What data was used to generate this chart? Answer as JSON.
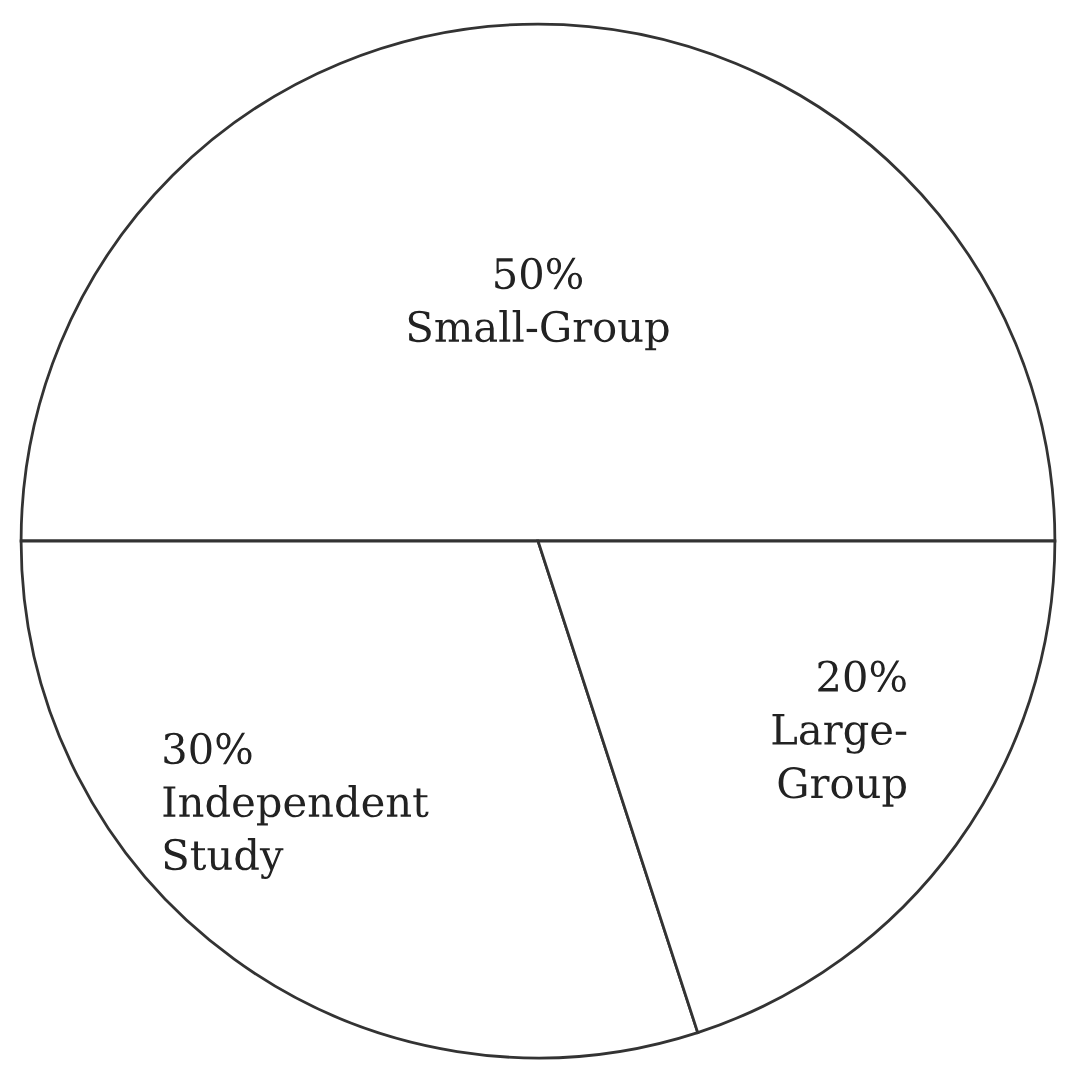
{
  "chart_data": {
    "type": "pie",
    "categories": [
      "Small-Group",
      "Independent Study",
      "Large-Group"
    ],
    "values": [
      50,
      30,
      20
    ],
    "value_labels": [
      "50%",
      "30%",
      "20%"
    ],
    "colors": [
      "#ffffff",
      "#ffffff",
      "#ffffff"
    ]
  }
}
